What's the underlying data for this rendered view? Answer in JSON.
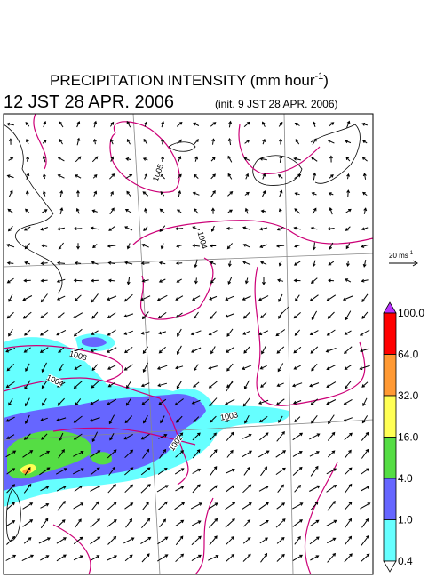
{
  "header": {
    "title": "PRECIPITATION INTENSITY (mm hour",
    "title_exponent": "-1",
    "title_close": ")",
    "valid_time": "12 JST 28 APR. 2006",
    "init_time": "(init. 9 JST 28 APR. 2006)"
  },
  "vector_scale": {
    "label": "20 ms",
    "exponent": "-1"
  },
  "colorbar": {
    "levels": [
      "100.0",
      "64.0",
      "32.0",
      "16.0",
      "4.0",
      "1.0",
      "0.4"
    ],
    "colors": [
      "#ff0000",
      "#ff9933",
      "#ffff55",
      "#55dd44",
      "#6666ff",
      "#66ffff"
    ],
    "over_color": "#bb33ff",
    "under_color": "#ffffff"
  },
  "map": {
    "contour_labels": [
      "1005",
      "1004",
      "1008",
      "1004",
      "1003",
      "1002"
    ]
  }
}
